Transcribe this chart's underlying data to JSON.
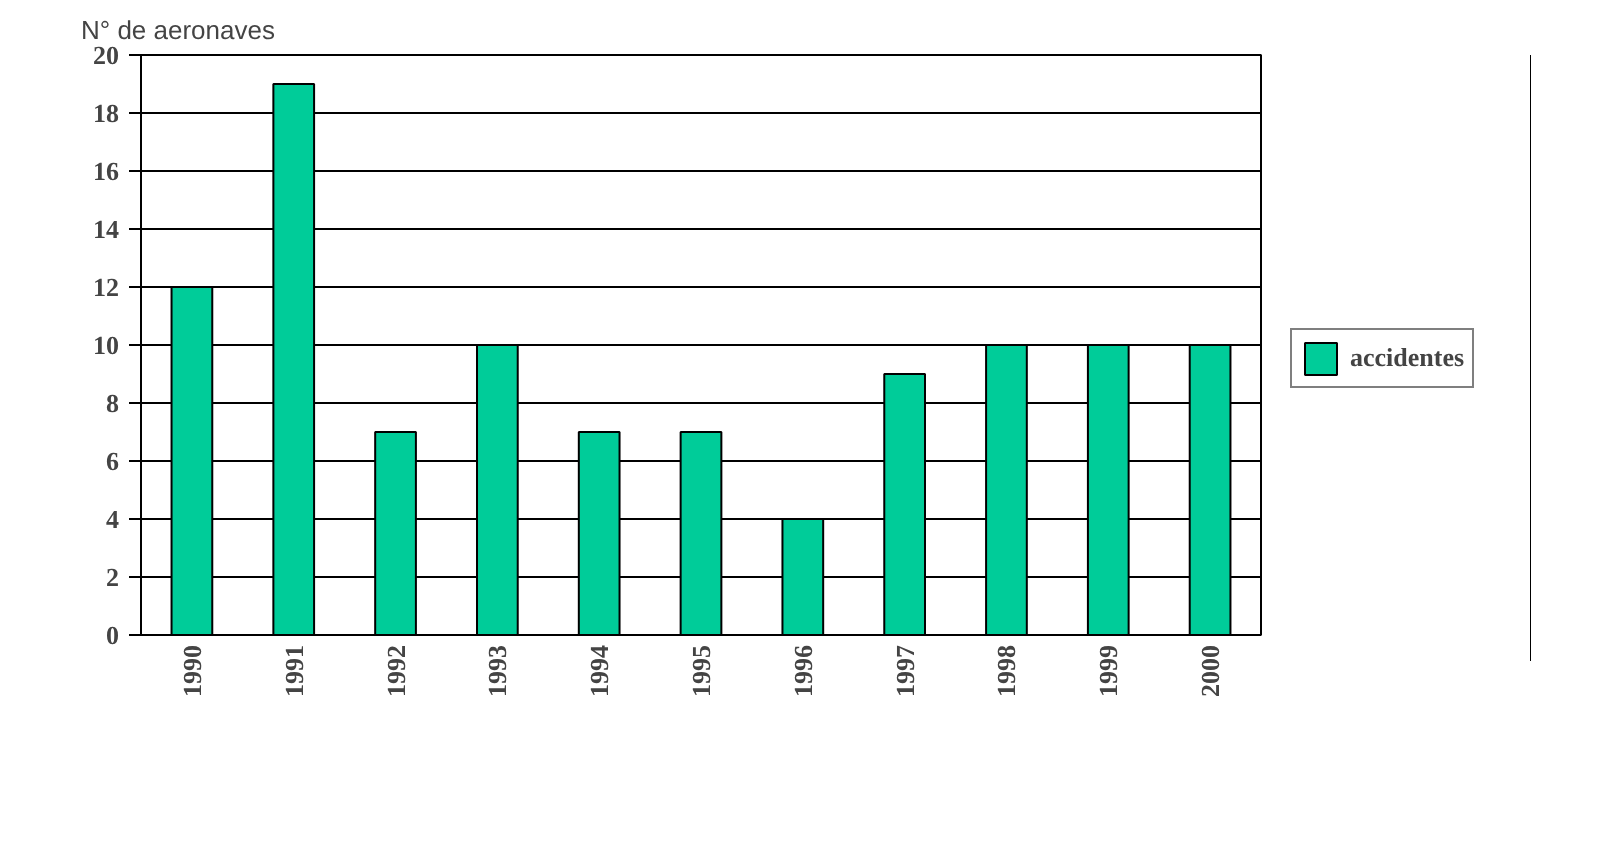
{
  "chart_data": {
    "type": "bar",
    "ylabel": "N° de aeronaves",
    "categories": [
      "1990",
      "1991",
      "1992",
      "1993",
      "1994",
      "1995",
      "1996",
      "1997",
      "1998",
      "1999",
      "2000"
    ],
    "series": [
      {
        "name": "accidentes",
        "color": "#00cc99",
        "values": [
          12,
          19,
          7,
          10,
          7,
          7,
          4,
          9,
          10,
          10,
          10
        ]
      }
    ],
    "ylim": [
      0,
      20
    ],
    "yticks": [
      0,
      2,
      4,
      6,
      8,
      10,
      12,
      14,
      16,
      18,
      20
    ],
    "grid": "y",
    "legend": "right"
  }
}
